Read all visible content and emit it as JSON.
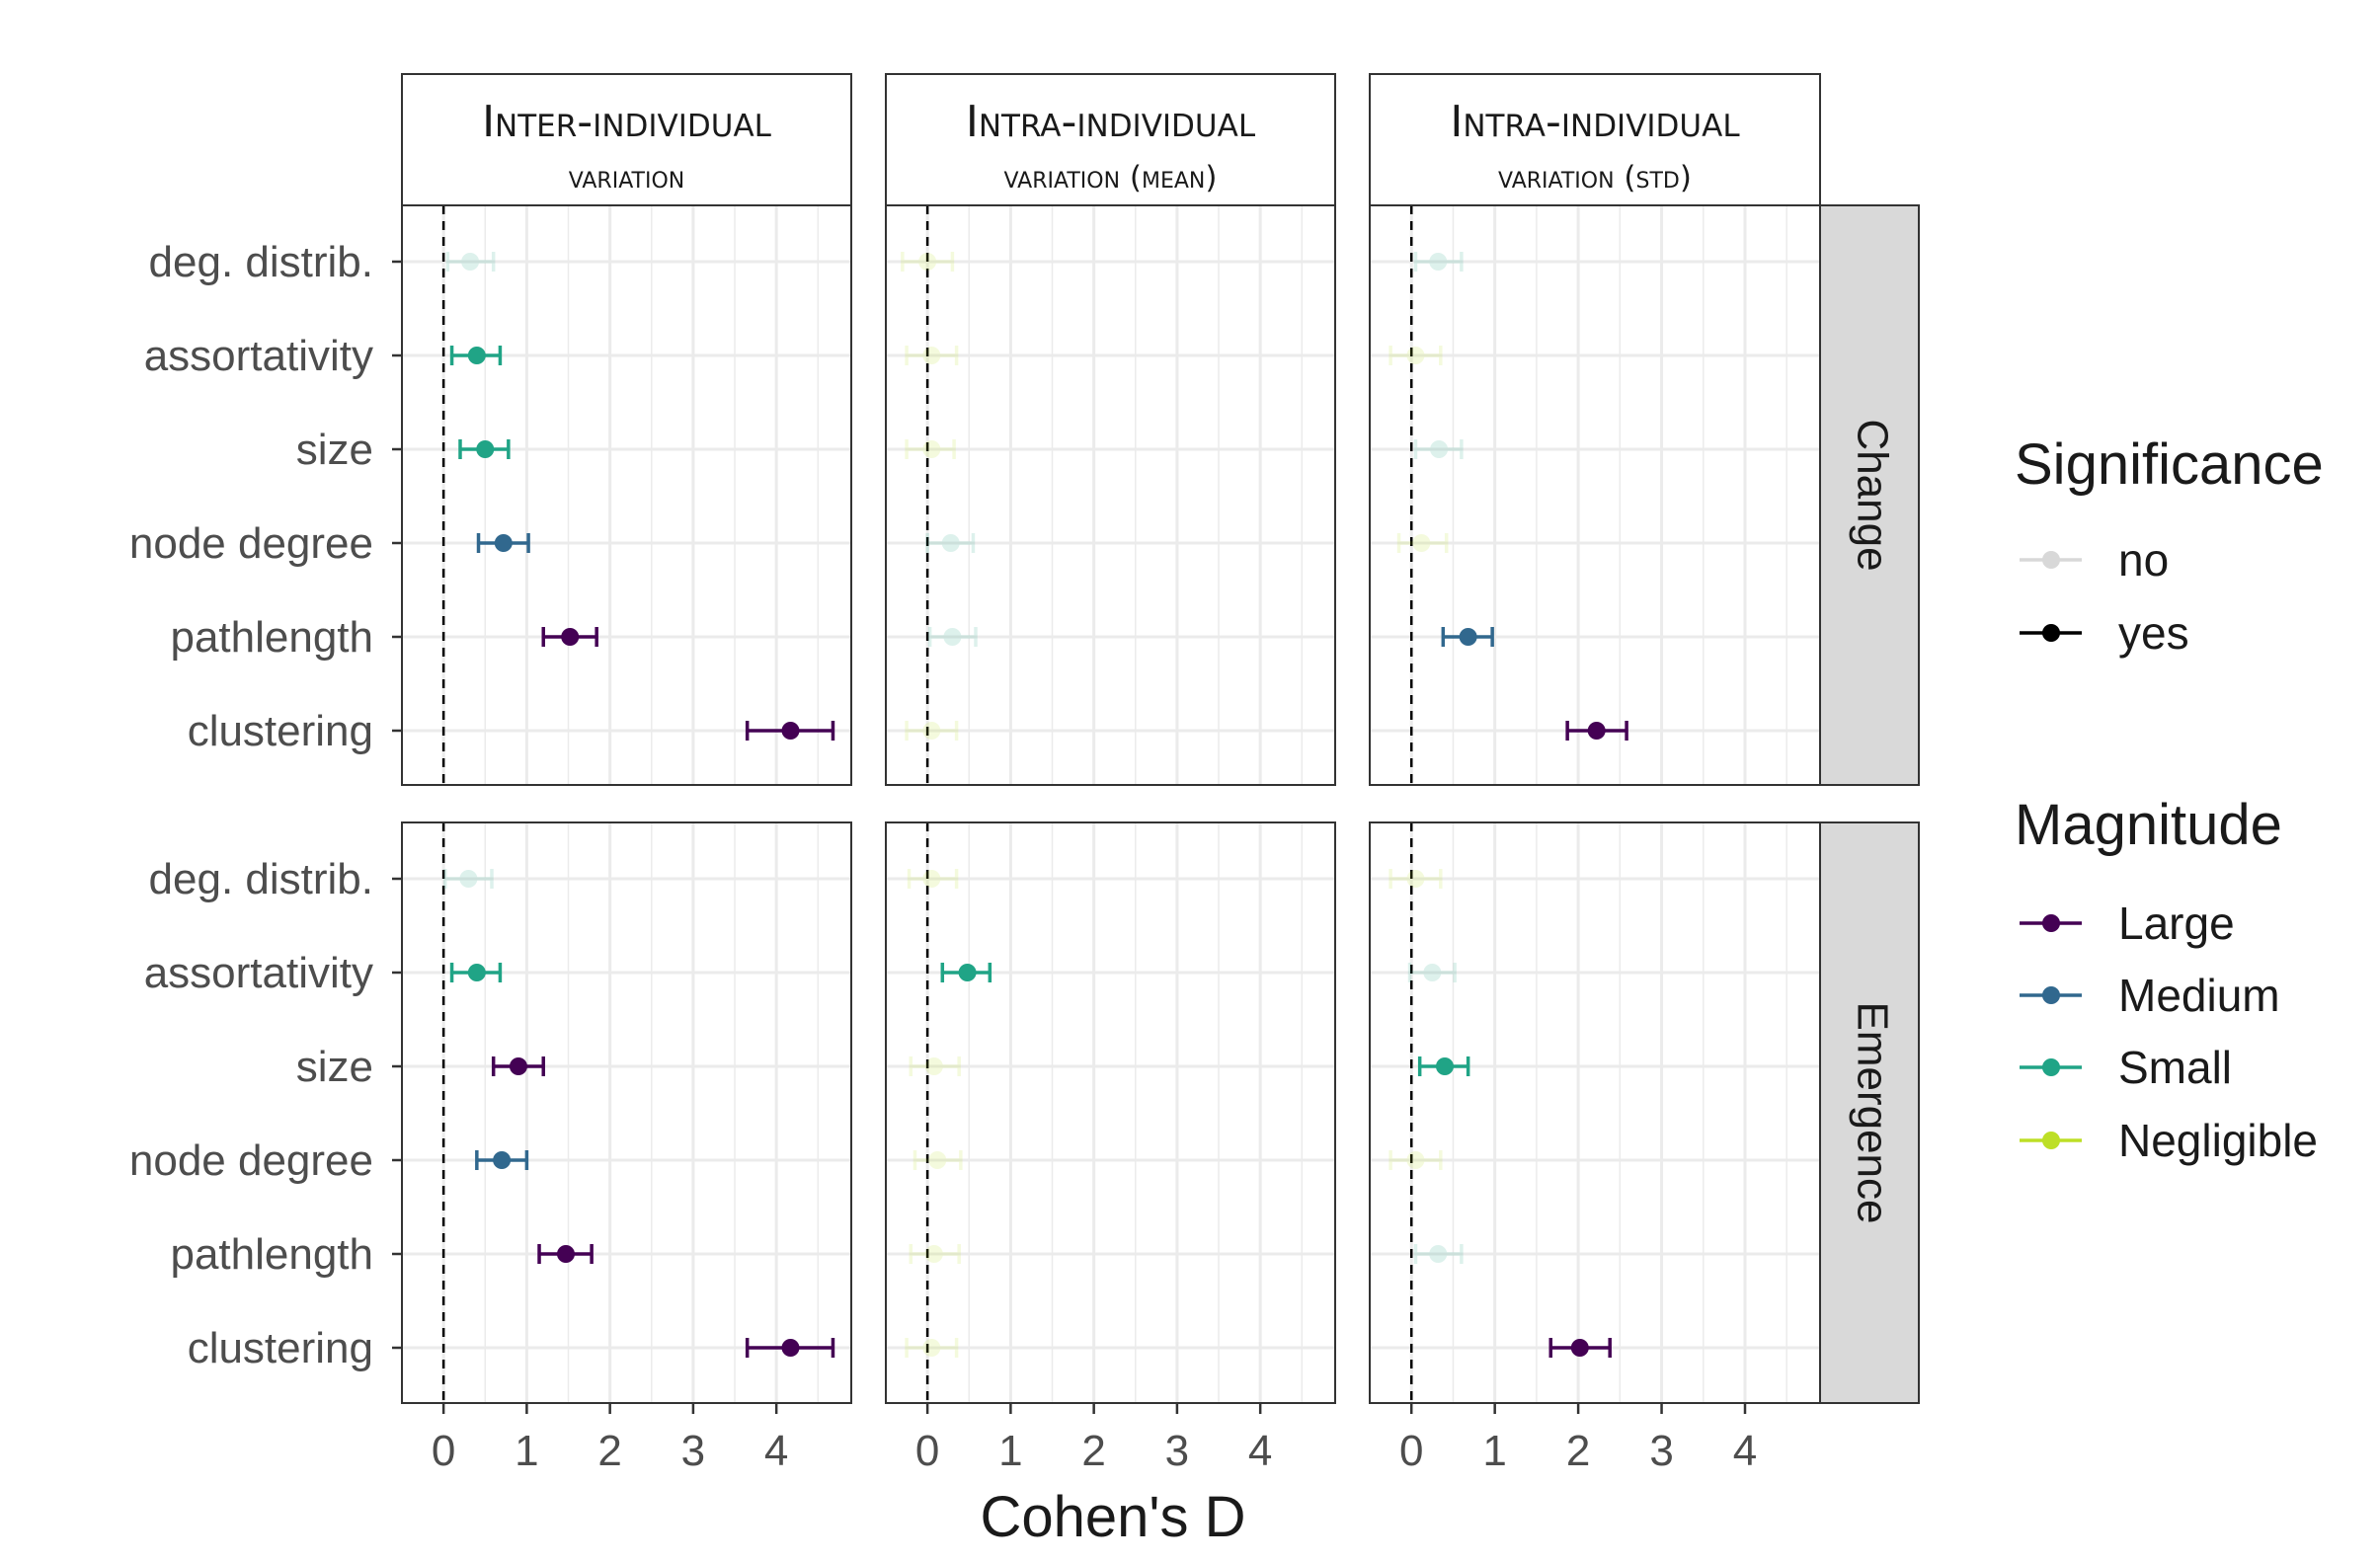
{
  "chart_data": {
    "type": "forest",
    "xlabel": "Cohen's D",
    "ylabel": "",
    "xlim": [
      -0.5,
      4.9
    ],
    "x_ticks": [
      0,
      1,
      2,
      3,
      4
    ],
    "reference_line": 0,
    "grid": true,
    "legend_position": "right",
    "categories": [
      "deg. distrib.",
      "assortativity",
      "size",
      "node degree",
      "pathlength",
      "clustering"
    ],
    "columns": [
      {
        "title_main": "Inter-individual",
        "title_sub": "variation"
      },
      {
        "title_main": "Intra-individual",
        "title_sub": "variation (mean)"
      },
      {
        "title_main": "Intra-individual",
        "title_sub": "variation (std)"
      }
    ],
    "rows": [
      "Change",
      "Emergence"
    ],
    "panels": [
      {
        "row": "Change",
        "column": "Inter-individual variation",
        "points": [
          {
            "category": "deg. distrib.",
            "d": 0.32,
            "lo": 0.05,
            "hi": 0.6,
            "magnitude": "Small",
            "significant": false
          },
          {
            "category": "assortativity",
            "d": 0.4,
            "lo": 0.1,
            "hi": 0.68,
            "magnitude": "Small",
            "significant": true
          },
          {
            "category": "size",
            "d": 0.5,
            "lo": 0.2,
            "hi": 0.78,
            "magnitude": "Small",
            "significant": true
          },
          {
            "category": "node degree",
            "d": 0.72,
            "lo": 0.42,
            "hi": 1.02,
            "magnitude": "Medium",
            "significant": true
          },
          {
            "category": "pathlength",
            "d": 1.52,
            "lo": 1.2,
            "hi": 1.84,
            "magnitude": "Large",
            "significant": true
          },
          {
            "category": "clustering",
            "d": 4.17,
            "lo": 3.65,
            "hi": 4.68,
            "magnitude": "Large",
            "significant": true
          }
        ]
      },
      {
        "row": "Change",
        "column": "Intra-individual variation (mean)",
        "points": [
          {
            "category": "deg. distrib.",
            "d": 0.0,
            "lo": -0.3,
            "hi": 0.3,
            "magnitude": "Negligible",
            "significant": false
          },
          {
            "category": "assortativity",
            "d": 0.05,
            "lo": -0.25,
            "hi": 0.35,
            "magnitude": "Negligible",
            "significant": false
          },
          {
            "category": "size",
            "d": 0.05,
            "lo": -0.25,
            "hi": 0.32,
            "magnitude": "Negligible",
            "significant": false
          },
          {
            "category": "node degree",
            "d": 0.28,
            "lo": 0.0,
            "hi": 0.55,
            "magnitude": "Small",
            "significant": false
          },
          {
            "category": "pathlength",
            "d": 0.3,
            "lo": 0.03,
            "hi": 0.58,
            "magnitude": "Small",
            "significant": false
          },
          {
            "category": "clustering",
            "d": 0.05,
            "lo": -0.25,
            "hi": 0.35,
            "magnitude": "Negligible",
            "significant": false
          }
        ]
      },
      {
        "row": "Change",
        "column": "Intra-individual variation (std)",
        "points": [
          {
            "category": "deg. distrib.",
            "d": 0.32,
            "lo": 0.05,
            "hi": 0.6,
            "magnitude": "Small",
            "significant": false
          },
          {
            "category": "assortativity",
            "d": 0.05,
            "lo": -0.25,
            "hi": 0.35,
            "magnitude": "Negligible",
            "significant": false
          },
          {
            "category": "size",
            "d": 0.33,
            "lo": 0.05,
            "hi": 0.6,
            "magnitude": "Small",
            "significant": false
          },
          {
            "category": "node degree",
            "d": 0.12,
            "lo": -0.15,
            "hi": 0.42,
            "magnitude": "Negligible",
            "significant": false
          },
          {
            "category": "pathlength",
            "d": 0.68,
            "lo": 0.38,
            "hi": 0.97,
            "magnitude": "Medium",
            "significant": true
          },
          {
            "category": "clustering",
            "d": 2.22,
            "lo": 1.87,
            "hi": 2.58,
            "magnitude": "Large",
            "significant": true
          }
        ]
      },
      {
        "row": "Emergence",
        "column": "Inter-individual variation",
        "points": [
          {
            "category": "deg. distrib.",
            "d": 0.3,
            "lo": 0.02,
            "hi": 0.58,
            "magnitude": "Small",
            "significant": false
          },
          {
            "category": "assortativity",
            "d": 0.4,
            "lo": 0.1,
            "hi": 0.68,
            "magnitude": "Small",
            "significant": true
          },
          {
            "category": "size",
            "d": 0.9,
            "lo": 0.6,
            "hi": 1.2,
            "magnitude": "Large",
            "significant": true
          },
          {
            "category": "node degree",
            "d": 0.7,
            "lo": 0.4,
            "hi": 1.0,
            "magnitude": "Medium",
            "significant": true
          },
          {
            "category": "pathlength",
            "d": 1.47,
            "lo": 1.15,
            "hi": 1.78,
            "magnitude": "Large",
            "significant": true
          },
          {
            "category": "clustering",
            "d": 4.17,
            "lo": 3.65,
            "hi": 4.68,
            "magnitude": "Large",
            "significant": true
          }
        ]
      },
      {
        "row": "Emergence",
        "column": "Intra-individual variation (mean)",
        "points": [
          {
            "category": "deg. distrib.",
            "d": 0.05,
            "lo": -0.22,
            "hi": 0.35,
            "magnitude": "Negligible",
            "significant": false
          },
          {
            "category": "assortativity",
            "d": 0.48,
            "lo": 0.18,
            "hi": 0.75,
            "magnitude": "Small",
            "significant": true
          },
          {
            "category": "size",
            "d": 0.08,
            "lo": -0.2,
            "hi": 0.38,
            "magnitude": "Negligible",
            "significant": false
          },
          {
            "category": "node degree",
            "d": 0.12,
            "lo": -0.15,
            "hi": 0.4,
            "magnitude": "Negligible",
            "significant": false
          },
          {
            "category": "pathlength",
            "d": 0.08,
            "lo": -0.2,
            "hi": 0.38,
            "magnitude": "Negligible",
            "significant": false
          },
          {
            "category": "clustering",
            "d": 0.05,
            "lo": -0.25,
            "hi": 0.35,
            "magnitude": "Negligible",
            "significant": false
          }
        ]
      },
      {
        "row": "Emergence",
        "column": "Intra-individual variation (std)",
        "points": [
          {
            "category": "deg. distrib.",
            "d": 0.05,
            "lo": -0.25,
            "hi": 0.35,
            "magnitude": "Negligible",
            "significant": false
          },
          {
            "category": "assortativity",
            "d": 0.25,
            "lo": -0.02,
            "hi": 0.52,
            "magnitude": "Small",
            "significant": false
          },
          {
            "category": "size",
            "d": 0.4,
            "lo": 0.1,
            "hi": 0.68,
            "magnitude": "Small",
            "significant": true
          },
          {
            "category": "node degree",
            "d": 0.05,
            "lo": -0.25,
            "hi": 0.35,
            "magnitude": "Negligible",
            "significant": false
          },
          {
            "category": "pathlength",
            "d": 0.32,
            "lo": 0.05,
            "hi": 0.6,
            "magnitude": "Small",
            "significant": false
          },
          {
            "category": "clustering",
            "d": 2.02,
            "lo": 1.67,
            "hi": 2.38,
            "magnitude": "Large",
            "significant": true
          }
        ]
      }
    ],
    "legend": {
      "significance": {
        "title": "Significance",
        "items": [
          "no",
          "yes"
        ]
      },
      "magnitude": {
        "title": "Magnitude",
        "items": [
          "Large",
          "Medium",
          "Small",
          "Negligible"
        ]
      }
    },
    "colors": {
      "Large": "#440154",
      "Medium": "#31688e",
      "Small": "#20a486",
      "Negligible": "#bddf26",
      "significant_alpha": 1.0,
      "nonsignificant_alpha": 0.15,
      "grid": "#ebebeb",
      "strip_bg": "#d9d9d9"
    }
  }
}
